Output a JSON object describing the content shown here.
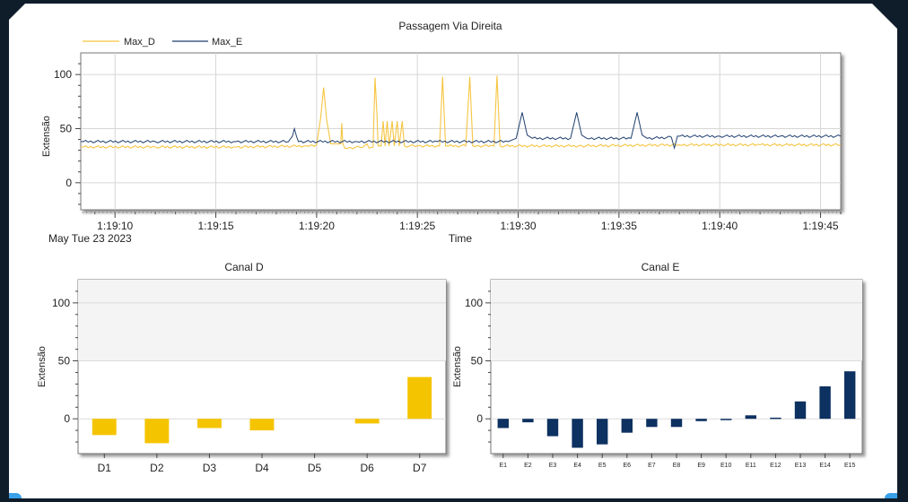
{
  "chart_data": [
    {
      "type": "line",
      "title": "Passagem Via Direita",
      "xlabel": "Time",
      "ylabel": "Extensão",
      "date_label": "May Tue 23 2023",
      "ylim": [
        -25,
        120
      ],
      "yticks": [
        0,
        50,
        100
      ],
      "x_tick_labels": [
        "1:19:10",
        "1:19:15",
        "1:19:20",
        "1:19:25",
        "1:19:30",
        "1:19:35",
        "1:19:40",
        "1:19:45"
      ],
      "x_tick_seconds": [
        10,
        15,
        20,
        25,
        30,
        35,
        40,
        45
      ],
      "xlim_seconds": [
        8.3,
        46.0
      ],
      "grid": true,
      "legend_position": "top-left",
      "colors": {
        "Max_D": "#f5c542",
        "Max_E": "#1f3f6e"
      },
      "series": [
        {
          "name": "Max_D",
          "points": [
            [
              8.3,
              33
            ],
            [
              12,
              33
            ],
            [
              16,
              33
            ],
            [
              19.5,
              34
            ],
            [
              20.0,
              35
            ],
            [
              20.2,
              60
            ],
            [
              20.35,
              88
            ],
            [
              20.5,
              58
            ],
            [
              20.7,
              36
            ],
            [
              21.0,
              36
            ],
            [
              21.2,
              36
            ],
            [
              21.25,
              55
            ],
            [
              21.3,
              36
            ],
            [
              21.4,
              32
            ],
            [
              22.3,
              33
            ],
            [
              22.5,
              36
            ],
            [
              22.6,
              32
            ],
            [
              22.8,
              33
            ],
            [
              22.9,
              97
            ],
            [
              23.0,
              60
            ],
            [
              23.05,
              34
            ],
            [
              23.2,
              34
            ],
            [
              23.3,
              57
            ],
            [
              23.4,
              34
            ],
            [
              23.5,
              57
            ],
            [
              23.6,
              34
            ],
            [
              23.75,
              57
            ],
            [
              23.85,
              34
            ],
            [
              24.0,
              57
            ],
            [
              24.1,
              34
            ],
            [
              24.25,
              57
            ],
            [
              24.35,
              34
            ],
            [
              25.0,
              34
            ],
            [
              26.1,
              34
            ],
            [
              26.25,
              98
            ],
            [
              26.4,
              34
            ],
            [
              27.4,
              34
            ],
            [
              27.6,
              98
            ],
            [
              27.75,
              34
            ],
            [
              28.8,
              34
            ],
            [
              28.95,
              99
            ],
            [
              29.1,
              34
            ],
            [
              33,
              34
            ],
            [
              38,
              35
            ],
            [
              42,
              35
            ],
            [
              46,
              35
            ]
          ]
        },
        {
          "name": "Max_E",
          "points": [
            [
              8.3,
              38
            ],
            [
              12,
              38
            ],
            [
              16,
              38
            ],
            [
              18.6,
              38
            ],
            [
              18.8,
              43
            ],
            [
              18.9,
              50
            ],
            [
              19.0,
              43
            ],
            [
              19.1,
              38
            ],
            [
              22,
              38
            ],
            [
              26,
              38
            ],
            [
              29.5,
              38
            ],
            [
              29.9,
              41
            ],
            [
              30.2,
              65
            ],
            [
              30.45,
              44
            ],
            [
              30.7,
              41
            ],
            [
              32.6,
              41
            ],
            [
              32.9,
              65
            ],
            [
              33.15,
              44
            ],
            [
              33.4,
              41
            ],
            [
              35.6,
              41
            ],
            [
              35.9,
              65
            ],
            [
              36.15,
              44
            ],
            [
              36.4,
              41
            ],
            [
              37.6,
              42
            ],
            [
              37.75,
              32
            ],
            [
              37.9,
              43
            ],
            [
              40,
              43
            ],
            [
              43,
              43
            ],
            [
              46,
              43
            ]
          ]
        }
      ]
    },
    {
      "type": "bar",
      "title": "Canal D",
      "ylabel": "Extensão",
      "ylim": [
        -30,
        120
      ],
      "yticks": [
        0,
        50,
        100
      ],
      "grid": true,
      "color": "#f5c400",
      "categories": [
        "D1",
        "D2",
        "D3",
        "D4",
        "D5",
        "D6",
        "D7"
      ],
      "values": [
        -14,
        -21,
        -8,
        -10,
        0,
        -4,
        36
      ]
    },
    {
      "type": "bar",
      "title": "Canal E",
      "ylabel": "Extensão",
      "ylim": [
        -30,
        120
      ],
      "yticks": [
        0,
        50,
        100
      ],
      "grid": true,
      "color": "#0d3160",
      "categories": [
        "E1",
        "E2",
        "E3",
        "E4",
        "E5",
        "E6",
        "E7",
        "E8",
        "E9",
        "E10",
        "E11",
        "E12",
        "E13",
        "E14",
        "E15"
      ],
      "values": [
        -8,
        -3,
        -15,
        -25,
        -22,
        -12,
        -7,
        -7,
        -2,
        -1,
        3,
        1,
        15,
        28,
        41
      ]
    }
  ]
}
